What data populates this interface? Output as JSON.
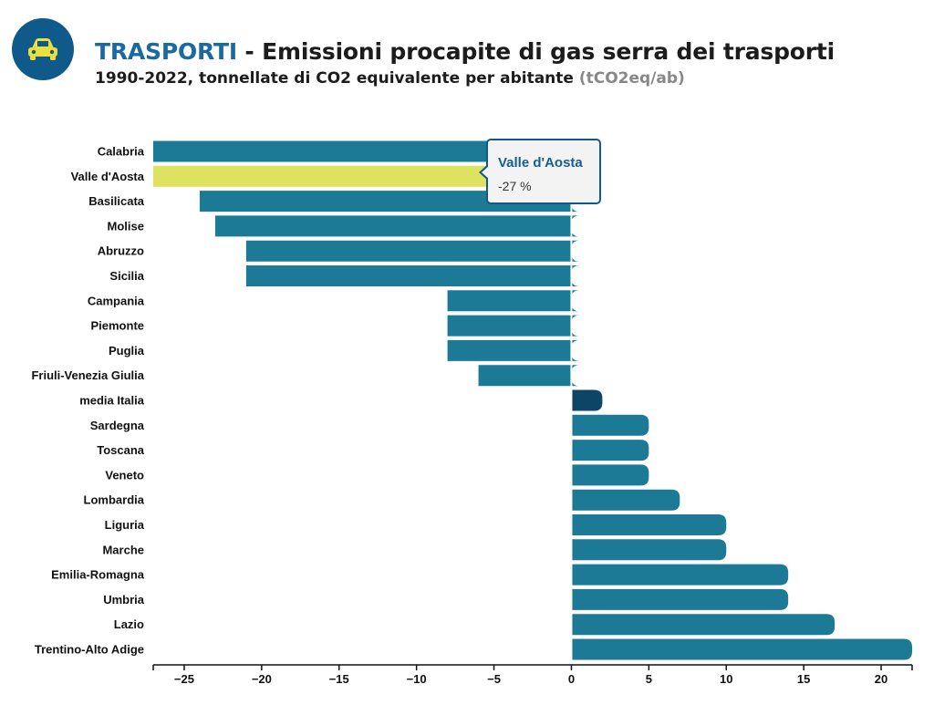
{
  "header": {
    "icon": "car-icon",
    "title_keyword": "TRASPORTI",
    "title_rest": " - Emissioni procapite di gas serra dei trasporti",
    "subtitle": "1990-2022, tonnellate di CO2 equivalente per abitante",
    "subtitle_unit": "(tCO2eq/ab)"
  },
  "colors": {
    "bar": "#1c7a97",
    "highlight": "#dde25f",
    "average": "#0d4566",
    "accent": "#0f5a8a"
  },
  "tooltip": {
    "name": "Valle d'Aosta",
    "value": "-27 %"
  },
  "chart_data": {
    "type": "bar",
    "orientation": "horizontal",
    "categories": [
      "Calabria",
      "Valle d'Aosta",
      "Basilicata",
      "Molise",
      "Abruzzo",
      "Sicilia",
      "Campania",
      "Piemonte",
      "Puglia",
      "Friuli-Venezia Giulia",
      "media Italia",
      "Sardegna",
      "Toscana",
      "Veneto",
      "Lombardia",
      "Liguria",
      "Marche",
      "Emilia-Romagna",
      "Umbria",
      "Lazio",
      "Trentino-Alto Adige"
    ],
    "values": [
      -27,
      -27,
      -24,
      -23,
      -21,
      -21,
      -8,
      -8,
      -8,
      -6,
      2,
      5,
      5,
      5,
      7,
      10,
      10,
      14,
      14,
      17,
      22
    ],
    "highlighted": "Valle d'Aosta",
    "average_category": "media Italia",
    "xlim": [
      -27,
      22
    ],
    "xticks": [
      -25,
      -20,
      -15,
      -10,
      -5,
      0,
      5,
      10,
      15,
      20
    ],
    "xtick_labels": [
      "−25",
      "−20",
      "−15",
      "−10",
      "−5",
      "0",
      "5",
      "10",
      "15",
      "20"
    ],
    "grid": false
  }
}
